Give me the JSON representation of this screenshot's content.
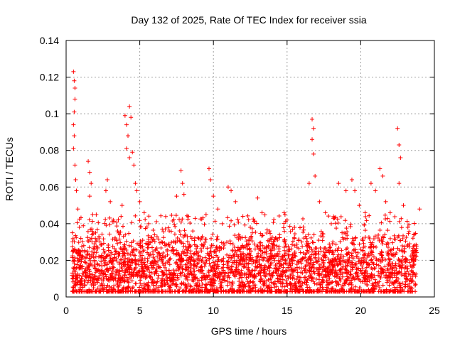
{
  "chart_data": {
    "type": "scatter",
    "title": "Day 132 of 2025, Rate Of TEC Index for receiver ssia",
    "xlabel": "GPS time / hours",
    "ylabel": "ROTI / TECUs",
    "xlim": [
      0,
      25
    ],
    "ylim": [
      0,
      0.14
    ],
    "x_ticks": [
      0,
      5,
      10,
      15,
      20,
      25
    ],
    "x_tick_labels": [
      "0",
      "5",
      "10",
      "15",
      "20",
      "25"
    ],
    "y_ticks": [
      0,
      0.02,
      0.04,
      0.06,
      0.08,
      0.1,
      0.12,
      0.14
    ],
    "y_tick_labels": [
      "0",
      "0.02",
      "0.04",
      "0.06",
      "0.08",
      "0.1",
      "0.12",
      "0.14"
    ],
    "grid": true,
    "marker": "+",
    "series": [
      {
        "name": "ROTI",
        "color": "#ff0000",
        "points": [
          [
            0.5,
            0.123
          ],
          [
            0.55,
            0.118
          ],
          [
            0.6,
            0.114
          ],
          [
            0.6,
            0.108
          ],
          [
            0.55,
            0.101
          ],
          [
            0.5,
            0.094
          ],
          [
            0.55,
            0.088
          ],
          [
            0.5,
            0.081
          ],
          [
            0.6,
            0.072
          ],
          [
            0.65,
            0.064
          ],
          [
            0.7,
            0.058
          ],
          [
            0.8,
            0.048
          ],
          [
            0.9,
            0.038
          ],
          [
            1.0,
            0.032
          ],
          [
            1.2,
            0.028
          ],
          [
            1.5,
            0.074
          ],
          [
            1.6,
            0.068
          ],
          [
            1.7,
            0.062
          ],
          [
            1.6,
            0.055
          ],
          [
            1.8,
            0.045
          ],
          [
            2.0,
            0.035
          ],
          [
            2.3,
            0.03
          ],
          [
            2.7,
            0.058
          ],
          [
            2.8,
            0.064
          ],
          [
            3.0,
            0.052
          ],
          [
            3.2,
            0.042
          ],
          [
            3.5,
            0.036
          ],
          [
            3.8,
            0.05
          ],
          [
            4.0,
            0.099
          ],
          [
            4.1,
            0.094
          ],
          [
            4.3,
            0.104
          ],
          [
            4.4,
            0.098
          ],
          [
            4.2,
            0.088
          ],
          [
            4.1,
            0.081
          ],
          [
            4.3,
            0.076
          ],
          [
            4.5,
            0.079
          ],
          [
            4.6,
            0.072
          ],
          [
            4.7,
            0.062
          ],
          [
            4.8,
            0.058
          ],
          [
            5.0,
            0.052
          ],
          [
            5.3,
            0.046
          ],
          [
            5.6,
            0.04
          ],
          [
            6.0,
            0.034
          ],
          [
            6.5,
            0.03
          ],
          [
            7.0,
            0.036
          ],
          [
            7.5,
            0.055
          ],
          [
            7.8,
            0.069
          ],
          [
            7.9,
            0.062
          ],
          [
            8.0,
            0.056
          ],
          [
            8.3,
            0.044
          ],
          [
            8.6,
            0.036
          ],
          [
            9.0,
            0.032
          ],
          [
            9.5,
            0.045
          ],
          [
            9.7,
            0.07
          ],
          [
            9.8,
            0.064
          ],
          [
            10.0,
            0.055
          ],
          [
            10.3,
            0.048
          ],
          [
            10.6,
            0.04
          ],
          [
            11.0,
            0.06
          ],
          [
            11.2,
            0.058
          ],
          [
            11.5,
            0.052
          ],
          [
            12.0,
            0.044
          ],
          [
            12.5,
            0.038
          ],
          [
            13.0,
            0.054
          ],
          [
            13.3,
            0.046
          ],
          [
            13.8,
            0.036
          ],
          [
            14.3,
            0.032
          ],
          [
            14.8,
            0.046
          ],
          [
            15.0,
            0.042
          ],
          [
            15.5,
            0.032
          ],
          [
            16.0,
            0.03
          ],
          [
            16.5,
            0.062
          ],
          [
            16.7,
            0.097
          ],
          [
            16.8,
            0.092
          ],
          [
            16.7,
            0.086
          ],
          [
            16.8,
            0.078
          ],
          [
            16.9,
            0.066
          ],
          [
            17.2,
            0.052
          ],
          [
            17.6,
            0.046
          ],
          [
            18.0,
            0.04
          ],
          [
            18.5,
            0.062
          ],
          [
            19.0,
            0.058
          ],
          [
            19.4,
            0.064
          ],
          [
            19.6,
            0.058
          ],
          [
            19.9,
            0.05
          ],
          [
            20.3,
            0.046
          ],
          [
            20.7,
            0.062
          ],
          [
            21.0,
            0.058
          ],
          [
            21.3,
            0.07
          ],
          [
            21.5,
            0.066
          ],
          [
            21.7,
            0.052
          ],
          [
            22.0,
            0.046
          ],
          [
            22.5,
            0.092
          ],
          [
            22.6,
            0.083
          ],
          [
            22.7,
            0.076
          ],
          [
            22.6,
            0.062
          ],
          [
            22.9,
            0.05
          ],
          [
            23.2,
            0.038
          ],
          [
            23.6,
            0.034
          ],
          [
            24.0,
            0.048
          ]
        ],
        "baseline_band": {
          "x_range": [
            0.4,
            23.8
          ],
          "typical_min": 0.003,
          "typical_max": 0.03,
          "center": 0.013,
          "count": 3200
        }
      }
    ]
  }
}
